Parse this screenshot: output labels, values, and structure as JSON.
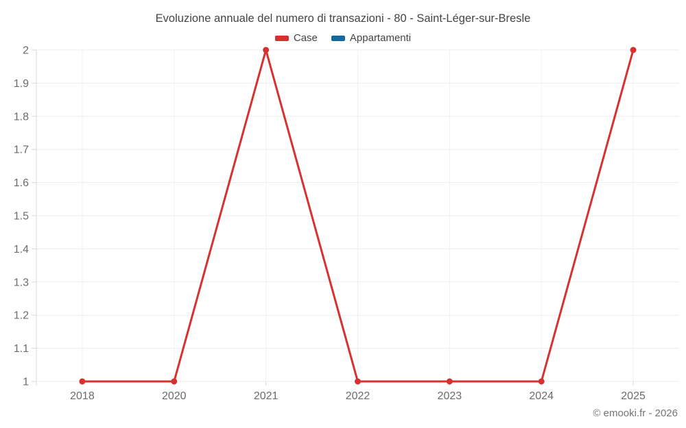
{
  "title": "Evoluzione annuale del numero di transazioni - 80 - Saint-Léger-sur-Bresle",
  "credit": "© emooki.fr - 2026",
  "legend": {
    "items": [
      {
        "label": "Case",
        "color": "#d7312f"
      },
      {
        "label": "Appartamenti",
        "color": "#15699e"
      }
    ]
  },
  "chart_data": {
    "type": "line",
    "title": "Evoluzione annuale del numero di transazioni - 80 - Saint-Léger-sur-Bresle",
    "categories": [
      "2018",
      "2020",
      "2021",
      "2022",
      "2023",
      "2024",
      "2025"
    ],
    "series": [
      {
        "name": "Case",
        "color": "#d7312f",
        "values": [
          1,
          1,
          2,
          1,
          1,
          1,
          2
        ]
      },
      {
        "name": "Appartamenti",
        "color": "#15699e",
        "values": []
      }
    ],
    "xlabel": "",
    "ylabel": "",
    "ylim": [
      1,
      2
    ],
    "ytick_step": 0.1,
    "grid": true,
    "legend_position": "top",
    "colors": {
      "grid_horizontal": "#ececec",
      "grid_vertical": "#f1f1f1",
      "axis": "#d8d8d8",
      "tick_text": "#6b6b6b",
      "title_text": "#444444"
    }
  }
}
